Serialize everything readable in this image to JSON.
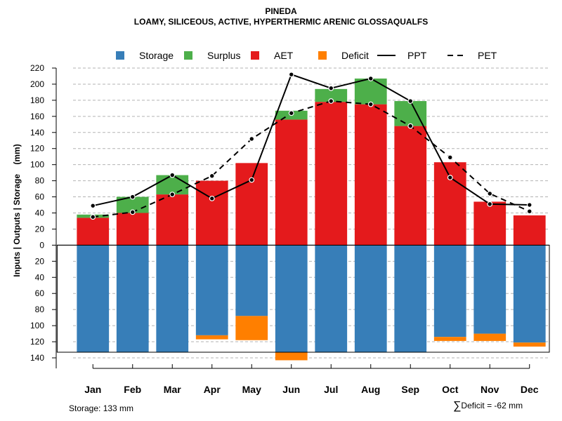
{
  "colors": {
    "storage": "#377eb8",
    "surplus": "#4daf4a",
    "aet": "#e41a1c",
    "deficit": "#ff7f00",
    "grid": "#b3b3b3"
  },
  "chart_data": {
    "type": "bar",
    "title": "PINEDA",
    "subtitle": "LOAMY, SILICEOUS, ACTIVE, HYPERTHERMIC ARENIC GLOSSAQUALFS",
    "ylabel": "Inputs | Outputs | Storage    (mm)",
    "categories": [
      "Jan",
      "Feb",
      "Mar",
      "Apr",
      "May",
      "Jun",
      "Jul",
      "Aug",
      "Sep",
      "Oct",
      "Nov",
      "Dec"
    ],
    "ylim": [
      -140,
      220
    ],
    "yticks": [
      220,
      200,
      180,
      160,
      140,
      120,
      100,
      80,
      60,
      40,
      20,
      0,
      -20,
      -40,
      -60,
      -80,
      -100,
      -120,
      -140
    ],
    "ytick_labels": [
      "220",
      "200",
      "180",
      "160",
      "140",
      "120",
      "100",
      "80",
      "60",
      "40",
      "20",
      "0",
      "20",
      "40",
      "60",
      "80",
      "100",
      "120",
      "140"
    ],
    "legend": [
      {
        "label": "Storage",
        "kind": "box",
        "color_key": "storage"
      },
      {
        "label": "Surplus",
        "kind": "box",
        "color_key": "surplus"
      },
      {
        "label": "AET",
        "kind": "box",
        "color_key": "aet"
      },
      {
        "label": "Deficit",
        "kind": "box",
        "color_key": "deficit"
      },
      {
        "label": "PPT",
        "kind": "line",
        "dash": "solid"
      },
      {
        "label": "PET",
        "kind": "line",
        "dash": "dashed"
      }
    ],
    "series": [
      {
        "name": "AET",
        "values": [
          34,
          40,
          63,
          80,
          102,
          156,
          178,
          175,
          148,
          103,
          54,
          37
        ]
      },
      {
        "name": "Surplus",
        "values": [
          4,
          20,
          24,
          0,
          0,
          11,
          16,
          32,
          31,
          0,
          0,
          0
        ]
      },
      {
        "name": "Storage",
        "values": [
          133,
          133,
          133,
          112,
          88,
          133,
          133,
          133,
          133,
          114,
          110,
          121
        ]
      },
      {
        "name": "Deficit",
        "values": [
          0,
          0,
          0,
          5,
          30,
          10,
          0,
          0,
          0,
          5,
          9,
          5
        ]
      },
      {
        "name": "PPT",
        "values": [
          49,
          60,
          87,
          58,
          81,
          212,
          195,
          207,
          179,
          84,
          51,
          50
        ]
      },
      {
        "name": "PET",
        "values": [
          35,
          41,
          63,
          86,
          132,
          164,
          179,
          175,
          148,
          109,
          64,
          42
        ]
      }
    ],
    "storage_capacity": 133
  },
  "footer": {
    "storage": "Storage: 133 mm",
    "deficit": "Deficit = -62 mm"
  }
}
